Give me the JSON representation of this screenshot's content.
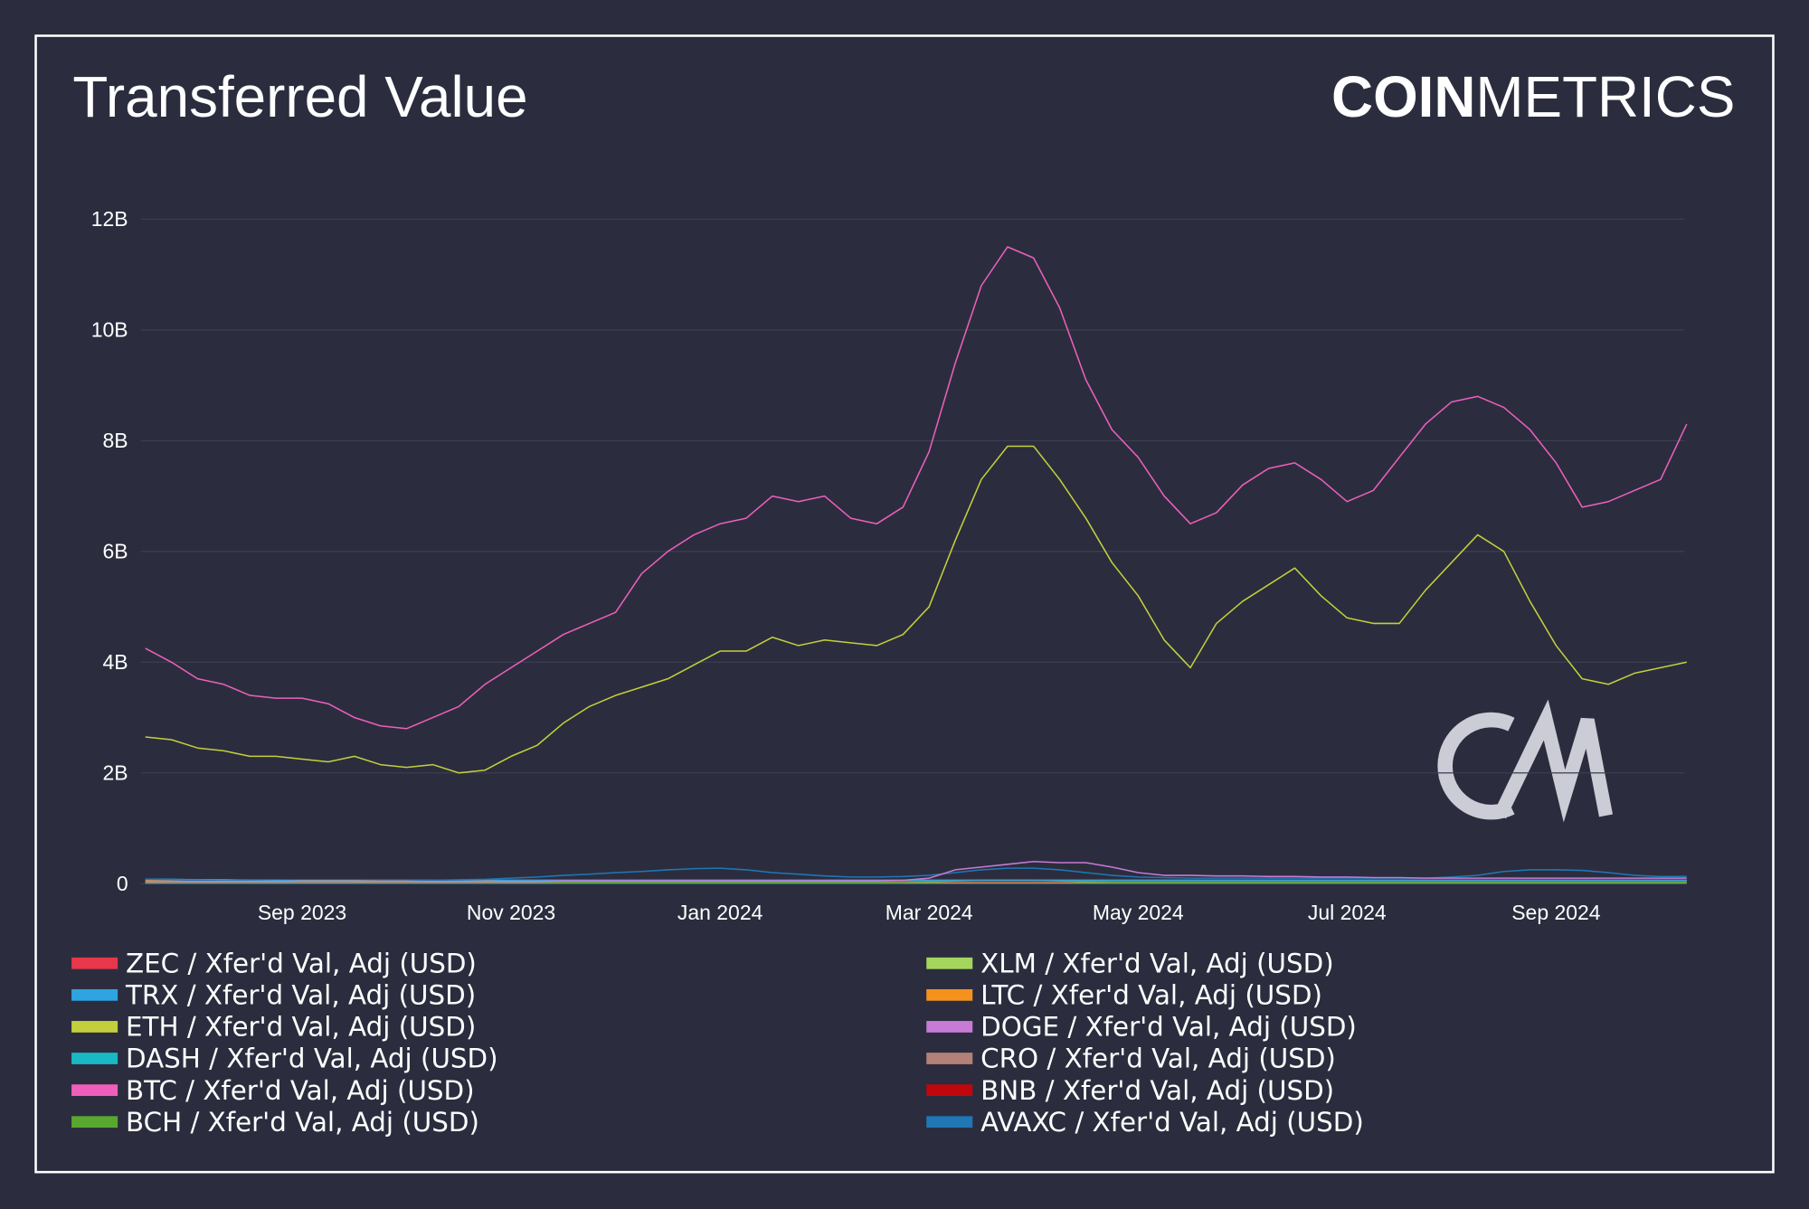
{
  "chart_data": {
    "type": "line",
    "title": "Transferred Value",
    "brand": {
      "bold": "COIN",
      "light": "METRICS"
    },
    "categories": [
      null,
      null,
      null,
      null,
      null,
      null,
      "Sep 2023",
      null,
      null,
      null,
      null,
      null,
      null,
      null,
      "Nov 2023",
      null,
      null,
      null,
      null,
      null,
      null,
      null,
      "Jan 2024",
      null,
      null,
      null,
      null,
      null,
      null,
      null,
      "Mar 2024",
      null,
      null,
      null,
      null,
      null,
      null,
      null,
      "May 2024",
      null,
      null,
      null,
      null,
      null,
      null,
      null,
      "Jul 2024",
      null,
      null,
      null,
      null,
      null,
      null,
      null,
      "Sep 2024",
      null,
      null,
      null,
      null,
      null
    ],
    "ylim": [
      0,
      12.3
    ],
    "yticks": [
      0,
      {
        "value": 2,
        "label": "2B"
      },
      {
        "value": 4,
        "label": "4B"
      },
      {
        "value": 6,
        "label": "6B"
      },
      {
        "value": 8,
        "label": "8B"
      },
      {
        "value": 10,
        "label": "10B"
      },
      {
        "value": 12,
        "label": "12B"
      }
    ],
    "grid": true,
    "series": [
      {
        "name": "ZEC / Xfer'd Val, Adj (USD)",
        "color": "#e8374a",
        "values": [
          0.02,
          0.02,
          0.02,
          0.02,
          0.02,
          0.02,
          0.02,
          0.02,
          0.02,
          0.02,
          0.02,
          0.02,
          0.02,
          0.02,
          0.02,
          0.02,
          0.02,
          0.02,
          0.02,
          0.02,
          0.02,
          0.02,
          0.02,
          0.02,
          0.02,
          0.02,
          0.02,
          0.02,
          0.02,
          0.02,
          0.02,
          0.02,
          0.02,
          0.02,
          0.02,
          0.02,
          0.02,
          0.02,
          0.02,
          0.02,
          0.02,
          0.02,
          0.02,
          0.02,
          0.02,
          0.02,
          0.02,
          0.02,
          0.02,
          0.02,
          0.02,
          0.02,
          0.02,
          0.02,
          0.02,
          0.02,
          0.02,
          0.02,
          0.02,
          0.02
        ]
      },
      {
        "name": "TRX / Xfer'd Val, Adj (USD)",
        "color": "#2ea4e0",
        "values": [
          0.08,
          0.08,
          0.07,
          0.07,
          0.06,
          0.06,
          0.05,
          0.05,
          0.05,
          0.05,
          0.05,
          0.05,
          0.05,
          0.05,
          0.06,
          0.06,
          0.06,
          0.06,
          0.06,
          0.06,
          0.06,
          0.06,
          0.06,
          0.06,
          0.06,
          0.06,
          0.06,
          0.06,
          0.06,
          0.06,
          0.06,
          0.06,
          0.06,
          0.06,
          0.06,
          0.06,
          0.06,
          0.06,
          0.06,
          0.06,
          0.06,
          0.06,
          0.06,
          0.06,
          0.06,
          0.06,
          0.06,
          0.06,
          0.06,
          0.06,
          0.06,
          0.06,
          0.06,
          0.06,
          0.06,
          0.06,
          0.06,
          0.06,
          0.06,
          0.06
        ]
      },
      {
        "name": "ETH / Xfer'd Val, Adj (USD)",
        "color": "#c4cf3c",
        "values": [
          2.65,
          2.6,
          2.45,
          2.4,
          2.3,
          2.3,
          2.25,
          2.2,
          2.3,
          2.15,
          2.1,
          2.15,
          2.0,
          2.05,
          2.3,
          2.5,
          2.9,
          3.2,
          3.4,
          3.55,
          3.7,
          3.95,
          4.2,
          4.2,
          4.45,
          4.3,
          4.4,
          4.35,
          4.3,
          4.5,
          5.0,
          6.2,
          7.3,
          7.9,
          7.9,
          7.3,
          6.6,
          5.8,
          5.2,
          4.4,
          3.9,
          4.7,
          5.1,
          5.4,
          5.7,
          5.2,
          4.8,
          4.7,
          4.7,
          5.3,
          5.8,
          6.3,
          6.0,
          5.1,
          4.3,
          3.7,
          3.6,
          3.8,
          3.9,
          4.0
        ]
      },
      {
        "name": "DASH / Xfer'd Val, Adj (USD)",
        "color": "#18b9c4",
        "values": [
          0.01,
          0.01,
          0.01,
          0.01,
          0.01,
          0.01,
          0.01,
          0.01,
          0.01,
          0.01,
          0.01,
          0.01,
          0.01,
          0.01,
          0.01,
          0.01,
          0.01,
          0.01,
          0.01,
          0.01,
          0.01,
          0.01,
          0.01,
          0.01,
          0.01,
          0.01,
          0.01,
          0.01,
          0.01,
          0.01,
          0.01,
          0.01,
          0.01,
          0.01,
          0.01,
          0.01,
          0.01,
          0.01,
          0.01,
          0.01,
          0.01,
          0.01,
          0.01,
          0.01,
          0.01,
          0.01,
          0.01,
          0.01,
          0.01,
          0.01,
          0.01,
          0.01,
          0.01,
          0.01,
          0.01,
          0.01,
          0.01,
          0.01,
          0.01,
          0.01
        ]
      },
      {
        "name": "BTC / Xfer'd Val, Adj (USD)",
        "color": "#ee5fbb",
        "values": [
          4.25,
          4.0,
          3.7,
          3.6,
          3.4,
          3.35,
          3.35,
          3.25,
          3.0,
          2.85,
          2.8,
          3.0,
          3.2,
          3.6,
          3.9,
          4.2,
          4.5,
          4.7,
          4.9,
          5.6,
          6.0,
          6.3,
          6.5,
          6.6,
          7.0,
          6.9,
          7.0,
          6.6,
          6.5,
          6.8,
          7.8,
          9.4,
          10.8,
          11.5,
          11.3,
          10.4,
          9.1,
          8.2,
          7.7,
          7.0,
          6.5,
          6.7,
          7.2,
          7.5,
          7.6,
          7.3,
          6.9,
          7.1,
          7.7,
          8.3,
          8.7,
          8.8,
          8.6,
          8.2,
          7.6,
          6.8,
          6.9,
          7.1,
          7.3,
          8.3
        ]
      },
      {
        "name": "BCH / Xfer'd Val, Adj (USD)",
        "color": "#58a72f",
        "values": [
          0.03,
          0.03,
          0.03,
          0.03,
          0.03,
          0.03,
          0.03,
          0.03,
          0.03,
          0.03,
          0.03,
          0.03,
          0.03,
          0.03,
          0.03,
          0.03,
          0.03,
          0.03,
          0.03,
          0.03,
          0.03,
          0.03,
          0.03,
          0.03,
          0.03,
          0.03,
          0.03,
          0.03,
          0.03,
          0.03,
          0.04,
          0.05,
          0.06,
          0.06,
          0.06,
          0.05,
          0.04,
          0.03,
          0.03,
          0.03,
          0.03,
          0.03,
          0.03,
          0.03,
          0.03,
          0.03,
          0.03,
          0.03,
          0.03,
          0.03,
          0.03,
          0.03,
          0.03,
          0.03,
          0.03,
          0.03,
          0.03,
          0.03,
          0.03,
          0.03
        ]
      },
      {
        "name": "XLM / Xfer'd Val, Adj (USD)",
        "color": "#a4d65e",
        "values": [
          0.03,
          0.03,
          0.03,
          0.03,
          0.03,
          0.03,
          0.03,
          0.03,
          0.03,
          0.03,
          0.03,
          0.03,
          0.03,
          0.03,
          0.03,
          0.03,
          0.03,
          0.03,
          0.03,
          0.03,
          0.03,
          0.03,
          0.03,
          0.03,
          0.03,
          0.03,
          0.03,
          0.03,
          0.03,
          0.03,
          0.03,
          0.03,
          0.03,
          0.03,
          0.03,
          0.03,
          0.03,
          0.03,
          0.03,
          0.03,
          0.03,
          0.03,
          0.03,
          0.03,
          0.03,
          0.03,
          0.03,
          0.03,
          0.03,
          0.03,
          0.03,
          0.03,
          0.03,
          0.03,
          0.03,
          0.03,
          0.03,
          0.03,
          0.03,
          0.03
        ]
      },
      {
        "name": "LTC / Xfer'd Val, Adj (USD)",
        "color": "#f5921e",
        "values": [
          0.06,
          0.06,
          0.06,
          0.06,
          0.06,
          0.06,
          0.06,
          0.06,
          0.06,
          0.06,
          0.06,
          0.06,
          0.06,
          0.06,
          0.06,
          0.06,
          0.06,
          0.06,
          0.06,
          0.06,
          0.06,
          0.06,
          0.06,
          0.06,
          0.06,
          0.06,
          0.06,
          0.06,
          0.06,
          0.06,
          0.06,
          0.06,
          0.06,
          0.06,
          0.06,
          0.06,
          0.06,
          0.06,
          0.06,
          0.06,
          0.06,
          0.06,
          0.06,
          0.06,
          0.06,
          0.06,
          0.06,
          0.06,
          0.06,
          0.06,
          0.06,
          0.06,
          0.06,
          0.06,
          0.06,
          0.06,
          0.06,
          0.06,
          0.06,
          0.06
        ]
      },
      {
        "name": "DOGE / Xfer'd Val, Adj (USD)",
        "color": "#c77ad6",
        "values": [
          0.04,
          0.04,
          0.04,
          0.04,
          0.04,
          0.04,
          0.04,
          0.04,
          0.04,
          0.04,
          0.04,
          0.04,
          0.04,
          0.04,
          0.04,
          0.04,
          0.05,
          0.05,
          0.05,
          0.05,
          0.05,
          0.05,
          0.05,
          0.05,
          0.05,
          0.05,
          0.05,
          0.05,
          0.05,
          0.06,
          0.1,
          0.25,
          0.3,
          0.35,
          0.4,
          0.38,
          0.38,
          0.3,
          0.2,
          0.15,
          0.15,
          0.14,
          0.14,
          0.13,
          0.13,
          0.12,
          0.12,
          0.11,
          0.11,
          0.1,
          0.1,
          0.1,
          0.1,
          0.1,
          0.1,
          0.1,
          0.1,
          0.1,
          0.1,
          0.1
        ]
      },
      {
        "name": "CRO / Xfer'd Val, Adj (USD)",
        "color": "#b38177",
        "values": [
          0.02,
          0.02,
          0.02,
          0.02,
          0.02,
          0.02,
          0.02,
          0.02,
          0.02,
          0.02,
          0.02,
          0.02,
          0.02,
          0.02,
          0.02,
          0.02,
          0.02,
          0.02,
          0.02,
          0.02,
          0.02,
          0.02,
          0.02,
          0.02,
          0.02,
          0.02,
          0.02,
          0.02,
          0.02,
          0.02,
          0.02,
          0.02,
          0.02,
          0.02,
          0.02,
          0.02,
          0.02,
          0.02,
          0.02,
          0.02,
          0.02,
          0.02,
          0.02,
          0.02,
          0.02,
          0.02,
          0.02,
          0.02,
          0.02,
          0.02,
          0.02,
          0.02,
          0.02,
          0.02,
          0.02,
          0.02,
          0.02,
          0.02,
          0.02,
          0.02
        ]
      },
      {
        "name": "BNB / Xfer'd Val, Adj (USD)",
        "color": "#c0070d",
        "values": [
          0.04,
          0.04,
          0.04,
          0.04,
          0.04,
          0.04,
          0.04,
          0.04,
          0.04,
          0.04,
          0.04,
          0.04,
          0.04,
          0.04,
          0.04,
          0.04,
          0.04,
          0.04,
          0.04,
          0.04,
          0.04,
          0.04,
          0.04,
          0.04,
          0.04,
          0.04,
          0.04,
          0.04,
          0.04,
          0.04,
          0.04,
          0.04,
          0.04,
          0.04,
          0.04,
          0.04,
          0.04,
          0.04,
          0.04,
          0.04,
          0.04,
          0.04,
          0.04,
          0.04,
          0.04,
          0.04,
          0.04,
          0.04,
          0.04,
          0.04,
          0.04,
          0.04,
          0.04,
          0.04,
          0.04,
          0.04,
          0.04,
          0.04,
          0.04,
          0.04
        ]
      },
      {
        "name": "AVAXC / Xfer'd Val, Adj (USD)",
        "color": "#1f77b4",
        "values": [
          0.08,
          0.07,
          0.06,
          0.05,
          0.05,
          0.04,
          0.04,
          0.04,
          0.04,
          0.05,
          0.05,
          0.06,
          0.07,
          0.08,
          0.1,
          0.12,
          0.15,
          0.17,
          0.2,
          0.22,
          0.25,
          0.27,
          0.28,
          0.25,
          0.2,
          0.17,
          0.14,
          0.12,
          0.12,
          0.13,
          0.15,
          0.2,
          0.25,
          0.28,
          0.28,
          0.25,
          0.2,
          0.15,
          0.12,
          0.11,
          0.1,
          0.1,
          0.1,
          0.1,
          0.1,
          0.1,
          0.1,
          0.1,
          0.1,
          0.1,
          0.12,
          0.15,
          0.22,
          0.25,
          0.25,
          0.24,
          0.2,
          0.15,
          0.13,
          0.13
        ]
      }
    ]
  }
}
